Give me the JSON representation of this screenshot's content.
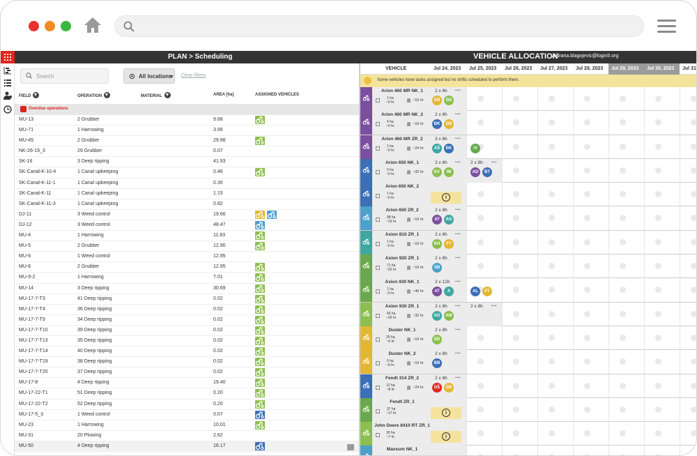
{
  "browser": {
    "url": ""
  },
  "header": {
    "breadcrumb": "PLAN > Scheduling",
    "title": "VEHICLE ALLOCATION",
    "user": "vedrana.blagojevic@login5.org"
  },
  "filters": {
    "search_placeholder": "Search",
    "locations": "All locations",
    "clear": "Clear filters"
  },
  "table": {
    "columns": [
      "FIELD",
      "OPERATION",
      "MATERIAL",
      "AREA [ha]",
      "ASSIGNED VEHICLES"
    ],
    "group": "Overdue operations",
    "rows": [
      {
        "field": "MU-13",
        "op": "2  Grubber",
        "area": "9.68",
        "veh": [
          "#8cbf4f"
        ]
      },
      {
        "field": "MU-71",
        "op": "1  Harrowing",
        "area": "3.99",
        "veh": []
      },
      {
        "field": "MU-45",
        "op": "2  Grubber",
        "area": "29.98",
        "veh": [
          "#8cbf4f"
        ]
      },
      {
        "field": "NK-26-19_3",
        "op": "29  Grubber",
        "area": "0.07",
        "veh": []
      },
      {
        "field": "SK-16",
        "op": "3  Deep ripping",
        "area": "41.93",
        "veh": []
      },
      {
        "field": "SK-Canal-K-10-4",
        "op": "1  Canal upkeeping",
        "area": "0.46",
        "veh": [
          "#8cbf4f"
        ]
      },
      {
        "field": "SK-Canal-K-11-1",
        "op": "1  Canal upkeeping",
        "area": "0.30",
        "veh": []
      },
      {
        "field": "SK-Canal-K-11",
        "op": "1  Canal upkeeping",
        "area": "1.15",
        "veh": []
      },
      {
        "field": "SK-Canal-K-11-3",
        "op": "1  Canal upkeeping",
        "area": "0.82",
        "veh": []
      },
      {
        "field": "DJ-11",
        "op": "3  Weed control",
        "area": "19.66",
        "veh": [
          "#e3b733",
          "#4da0c9"
        ]
      },
      {
        "field": "DJ-12",
        "op": "3  Weed control",
        "area": "48.47",
        "veh": [
          "#4da0c9"
        ]
      },
      {
        "field": "MU-4",
        "op": "1  Harrowing",
        "area": "11.83",
        "veh": [
          "#8cbf4f"
        ]
      },
      {
        "field": "MU-5",
        "op": "2  Grubber",
        "area": "12.90",
        "veh": [
          "#8cbf4f"
        ]
      },
      {
        "field": "MU-6",
        "op": "1  Weed control",
        "area": "12.95",
        "veh": []
      },
      {
        "field": "MU-6",
        "op": "2  Grubber",
        "area": "12.95",
        "veh": [
          "#8cbf4f"
        ]
      },
      {
        "field": "MU-9-2",
        "op": "1  Harrowing",
        "area": "7.01",
        "veh": [
          "#8cbf4f"
        ]
      },
      {
        "field": "MU-14",
        "op": "3  Deep ripping",
        "area": "30.69",
        "veh": [
          "#8cbf4f"
        ]
      },
      {
        "field": "MU-17-7-T3",
        "op": "41  Deep ripping",
        "area": "0.02",
        "veh": [
          "#8cbf4f"
        ]
      },
      {
        "field": "MU-17-7-T4",
        "op": "36  Deep ripping",
        "area": "0.02",
        "veh": [
          "#8cbf4f"
        ]
      },
      {
        "field": "MU-17-7-T9",
        "op": "34  Deep ripping",
        "area": "0.02",
        "veh": [
          "#8cbf4f"
        ]
      },
      {
        "field": "MU-17-7-T10",
        "op": "39  Deep ripping",
        "area": "0.02",
        "veh": [
          "#8cbf4f"
        ]
      },
      {
        "field": "MU-17-7-T13",
        "op": "35  Deep ripping",
        "area": "0.02",
        "veh": [
          "#8cbf4f"
        ]
      },
      {
        "field": "MU-17-7-T14",
        "op": "40  Deep ripping",
        "area": "0.02",
        "veh": [
          "#8cbf4f"
        ]
      },
      {
        "field": "MU-17-7-T19",
        "op": "38  Deep ripping",
        "area": "0.02",
        "veh": [
          "#8cbf4f"
        ]
      },
      {
        "field": "MU-17-7-T20",
        "op": "37  Deep ripping",
        "area": "0.02",
        "veh": [
          "#8cbf4f"
        ]
      },
      {
        "field": "MU-17-8",
        "op": "4  Deep ripping",
        "area": "19.40",
        "veh": [
          "#8cbf4f"
        ]
      },
      {
        "field": "MU-17-22-T1",
        "op": "51  Deep ripping",
        "area": "0.20",
        "veh": [
          "#8cbf4f"
        ]
      },
      {
        "field": "MU-17-22-T2",
        "op": "52  Deep ripping",
        "area": "0.20",
        "veh": [
          "#8cbf4f"
        ]
      },
      {
        "field": "MU-17-5_3",
        "op": "1  Weed control",
        "area": "0.07",
        "veh": [
          "#3b6fb6"
        ]
      },
      {
        "field": "MU-23",
        "op": "1  Harrowing",
        "area": "10.01",
        "veh": [
          "#8cbf4f"
        ]
      },
      {
        "field": "MU-31",
        "op": "20  Plowing",
        "area": "2.62",
        "veh": []
      },
      {
        "field": "MU-50",
        "op": "4  Deep ripping",
        "area": "16.17",
        "veh": [
          "#3b6fb6"
        ]
      }
    ]
  },
  "allocation": {
    "vehicle_col": "VEHICLE",
    "dates": [
      "Jul 24, 2023",
      "Jul 25, 2023",
      "Jul 26, 2023",
      "Jul 27, 2023",
      "Jul 28, 2023",
      "Jul 29, 2023",
      "Jul 30, 2023",
      "Jul 31,"
    ],
    "warning": "Some vehicles have tasks assigned but no shifts scheduled to perform them.",
    "vehicles": [
      {
        "name": "Arion 460 MR NK_1",
        "shift": "2 x 8h",
        "ha": "1 ha",
        "hr": "~0 hr",
        "hrs": "~16 hr",
        "color": "#7b4f9e",
        "av": [
          [
            "DB",
            "#e3b733"
          ],
          [
            "DD",
            "#8cbf4f"
          ]
        ]
      },
      {
        "name": "Arion 460 MR NK_2",
        "shift": "2 x 8h",
        "ha": "4 ha",
        "hr": "~0 hr",
        "hrs": "~16 hr",
        "color": "#7b4f9e",
        "av": [
          [
            "ĐK",
            "#3b6fb6"
          ],
          [
            "DB",
            "#e3b733"
          ]
        ]
      },
      {
        "name": "Arion 460 MR ZR_2",
        "shift": "3 x 8h",
        "ha": "1 ha",
        "hr": "~0 hr",
        "hrs": "~24 hr",
        "color": "#7b4f9e",
        "av": [
          [
            "AŠ",
            "#3fa7a0"
          ],
          [
            "ĐK",
            "#3b6fb6"
          ],
          [
            "IV",
            "#6aa84f"
          ]
        ]
      },
      {
        "name": "Arion 650 NK_1",
        "shift": "2 x 8h",
        "shift2": "2 x 8h",
        "ha": "0 ha",
        "hr": "~0 hr",
        "hrs": "~32 hr",
        "color": "#3b6fb6",
        "av": [
          [
            "EV",
            "#8cbf4f"
          ],
          [
            "IM",
            "#8cbf4f"
          ],
          [
            "AD",
            "#7b4f9e"
          ],
          [
            "BT",
            "#3b6fb6"
          ]
        ]
      },
      {
        "name": "Arion 650 NK_2",
        "ha": "1 ha",
        "hr": "~0 hr",
        "color": "#3b6fb6",
        "info": "i"
      },
      {
        "name": "Arion 650 ZR_2",
        "shift": "2 x 8h",
        "ha": "98 ha",
        "hr": "~16 hr",
        "hrs": "~16 hr",
        "color": "#4da0c9",
        "av": [
          [
            "AT",
            "#7b4f9e"
          ],
          [
            "AG",
            "#3fa7a0"
          ]
        ]
      },
      {
        "name": "Axion 810 ZR_1",
        "shift": "2 x 8h",
        "ha": "1 ha",
        "hr": "~0 hr",
        "hrs": "~16 hr",
        "color": "#3fa7a0",
        "av": [
          [
            "KH",
            "#8cbf4f"
          ],
          [
            "FT",
            "#e3b733"
          ]
        ]
      },
      {
        "name": "Axion 920 ZR_1",
        "shift": "2 x 8h",
        "ha": "71 ha",
        "hr": "~32 hr",
        "hrs": "~16 hr",
        "color": "#6aa84f",
        "av": [
          [
            "SB",
            "#4da0c9"
          ]
        ]
      },
      {
        "name": "Axion 930 NK_1",
        "shift": "2 x 12h",
        "ha": "1 ha",
        "hr": "~0 hr",
        "hrs": "~40 hr",
        "color": "#6aa84f",
        "av": [
          [
            "AT",
            "#7b4f9e"
          ],
          [
            "A",
            "#3fa7a0"
          ],
          [
            "AL",
            "#3b6fb6"
          ],
          [
            "FT",
            "#e3b733"
          ]
        ]
      },
      {
        "name": "Axion 930 ZR_1",
        "shift": "2 x 8h",
        "shift2": "2 x 8h",
        "ha": "66 ha",
        "hr": "~35 hr",
        "hrs": "~32 hr",
        "color": "#8cbf4f",
        "av": [
          [
            "AG",
            "#3fa7a0"
          ],
          [
            "AM",
            "#8cbf4f"
          ]
        ]
      },
      {
        "name": "Duster NK_1",
        "shift": "2 x 8h",
        "ha": "20 ha",
        "hr": "~0 hr",
        "hrs": "~16 hr",
        "color": "#e3b733",
        "av": [
          [
            "DD",
            "#8cbf4f"
          ]
        ]
      },
      {
        "name": "Duster NK_2",
        "shift": "2 x 8h",
        "ha": "0 ha",
        "hr": "~0 hr",
        "hrs": "~16 hr",
        "color": "#e3b733",
        "av": [
          [
            "BB",
            "#3b6fb6"
          ]
        ]
      },
      {
        "name": "Fendt 314 ZR_2",
        "shift": "2 x 8h",
        "ha": "12 ha",
        "hr": "~8 hr",
        "hrs": "~24 hr",
        "color": "#3b6fb6",
        "av": [
          [
            "DŠ",
            "#e4251f"
          ],
          [
            "DB",
            "#e3b733"
          ]
        ]
      },
      {
        "name": "Fendt ZR_1",
        "ha": "37 ha",
        "hr": "~17 hr",
        "color": "#6aa84f",
        "info": "i"
      },
      {
        "name": "John Deere 8410 RT ZR_1",
        "ha": "30 ha",
        "hr": "~7 hr",
        "color": "#8cbf4f",
        "info": "i"
      },
      {
        "name": "Maxxum NK_1",
        "ha": "",
        "hr": "",
        "color": "#4da0c9"
      }
    ]
  }
}
